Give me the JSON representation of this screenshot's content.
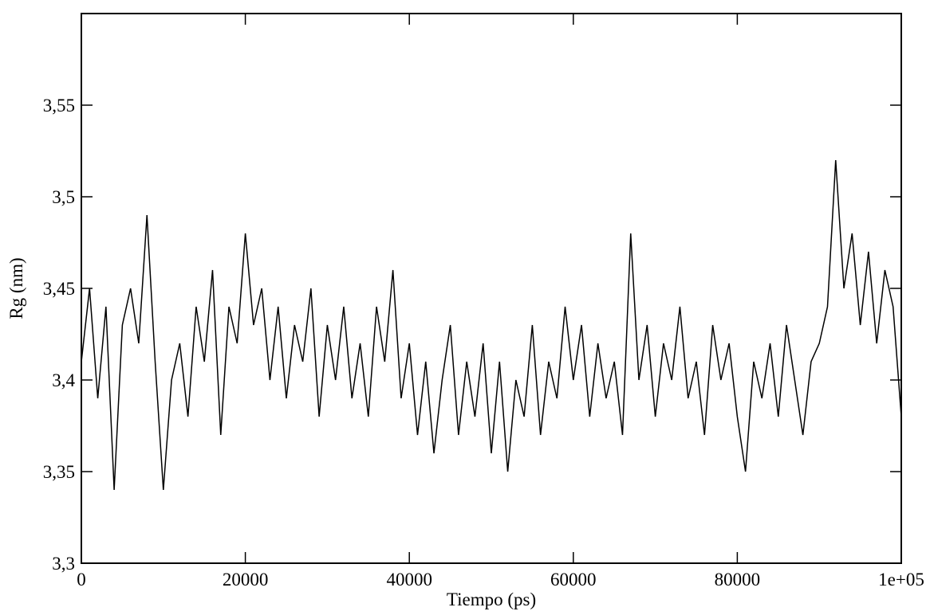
{
  "chart_data": {
    "type": "line",
    "x_label": "Tiempo (ps)",
    "y_label": "Rg (nm)",
    "color": "#000000",
    "xlim": [
      0,
      100000
    ],
    "ylim": [
      3.3,
      3.6
    ],
    "xticks": [
      0,
      20000,
      40000,
      60000,
      80000,
      {
        "value": 100000,
        "label": "1e+05"
      }
    ],
    "yticks": [
      {
        "value": 3.3,
        "label": "3,3"
      },
      {
        "value": 3.35,
        "label": "3,35"
      },
      {
        "value": 3.4,
        "label": "3,4"
      },
      {
        "value": 3.45,
        "label": "3,45"
      },
      {
        "value": 3.5,
        "label": "3,5"
      },
      {
        "value": 3.55,
        "label": "3,55"
      }
    ],
    "x": [
      0,
      1000,
      2000,
      3000,
      4000,
      5000,
      6000,
      7000,
      8000,
      9000,
      10000,
      11000,
      12000,
      13000,
      14000,
      15000,
      16000,
      17000,
      18000,
      19000,
      20000,
      21000,
      22000,
      23000,
      24000,
      25000,
      26000,
      27000,
      28000,
      29000,
      30000,
      31000,
      32000,
      33000,
      34000,
      35000,
      36000,
      37000,
      38000,
      39000,
      40000,
      41000,
      42000,
      43000,
      44000,
      45000,
      46000,
      47000,
      48000,
      49000,
      50000,
      51000,
      52000,
      53000,
      54000,
      55000,
      56000,
      57000,
      58000,
      59000,
      60000,
      61000,
      62000,
      63000,
      64000,
      65000,
      66000,
      67000,
      68000,
      69000,
      70000,
      71000,
      72000,
      73000,
      74000,
      75000,
      76000,
      77000,
      78000,
      79000,
      80000,
      81000,
      82000,
      83000,
      84000,
      85000,
      86000,
      87000,
      88000,
      89000,
      90000,
      91000,
      92000,
      93000,
      94000,
      95000,
      96000,
      97000,
      98000,
      99000,
      100000
    ],
    "values": [
      3.41,
      3.45,
      3.39,
      3.44,
      3.34,
      3.43,
      3.45,
      3.42,
      3.49,
      3.41,
      3.34,
      3.4,
      3.42,
      3.38,
      3.44,
      3.41,
      3.46,
      3.37,
      3.44,
      3.42,
      3.48,
      3.43,
      3.45,
      3.4,
      3.44,
      3.39,
      3.43,
      3.41,
      3.45,
      3.38,
      3.43,
      3.4,
      3.44,
      3.39,
      3.42,
      3.38,
      3.44,
      3.41,
      3.46,
      3.39,
      3.42,
      3.37,
      3.41,
      3.36,
      3.4,
      3.43,
      3.37,
      3.41,
      3.38,
      3.42,
      3.36,
      3.41,
      3.35,
      3.4,
      3.38,
      3.43,
      3.37,
      3.41,
      3.39,
      3.44,
      3.4,
      3.43,
      3.38,
      3.42,
      3.39,
      3.41,
      3.37,
      3.48,
      3.4,
      3.43,
      3.38,
      3.42,
      3.4,
      3.44,
      3.39,
      3.41,
      3.37,
      3.43,
      3.4,
      3.42,
      3.38,
      3.35,
      3.41,
      3.39,
      3.42,
      3.38,
      3.43,
      3.4,
      3.37,
      3.41,
      3.42,
      3.44,
      3.52,
      3.45,
      3.48,
      3.43,
      3.47,
      3.42,
      3.46,
      3.44,
      3.38
    ]
  }
}
